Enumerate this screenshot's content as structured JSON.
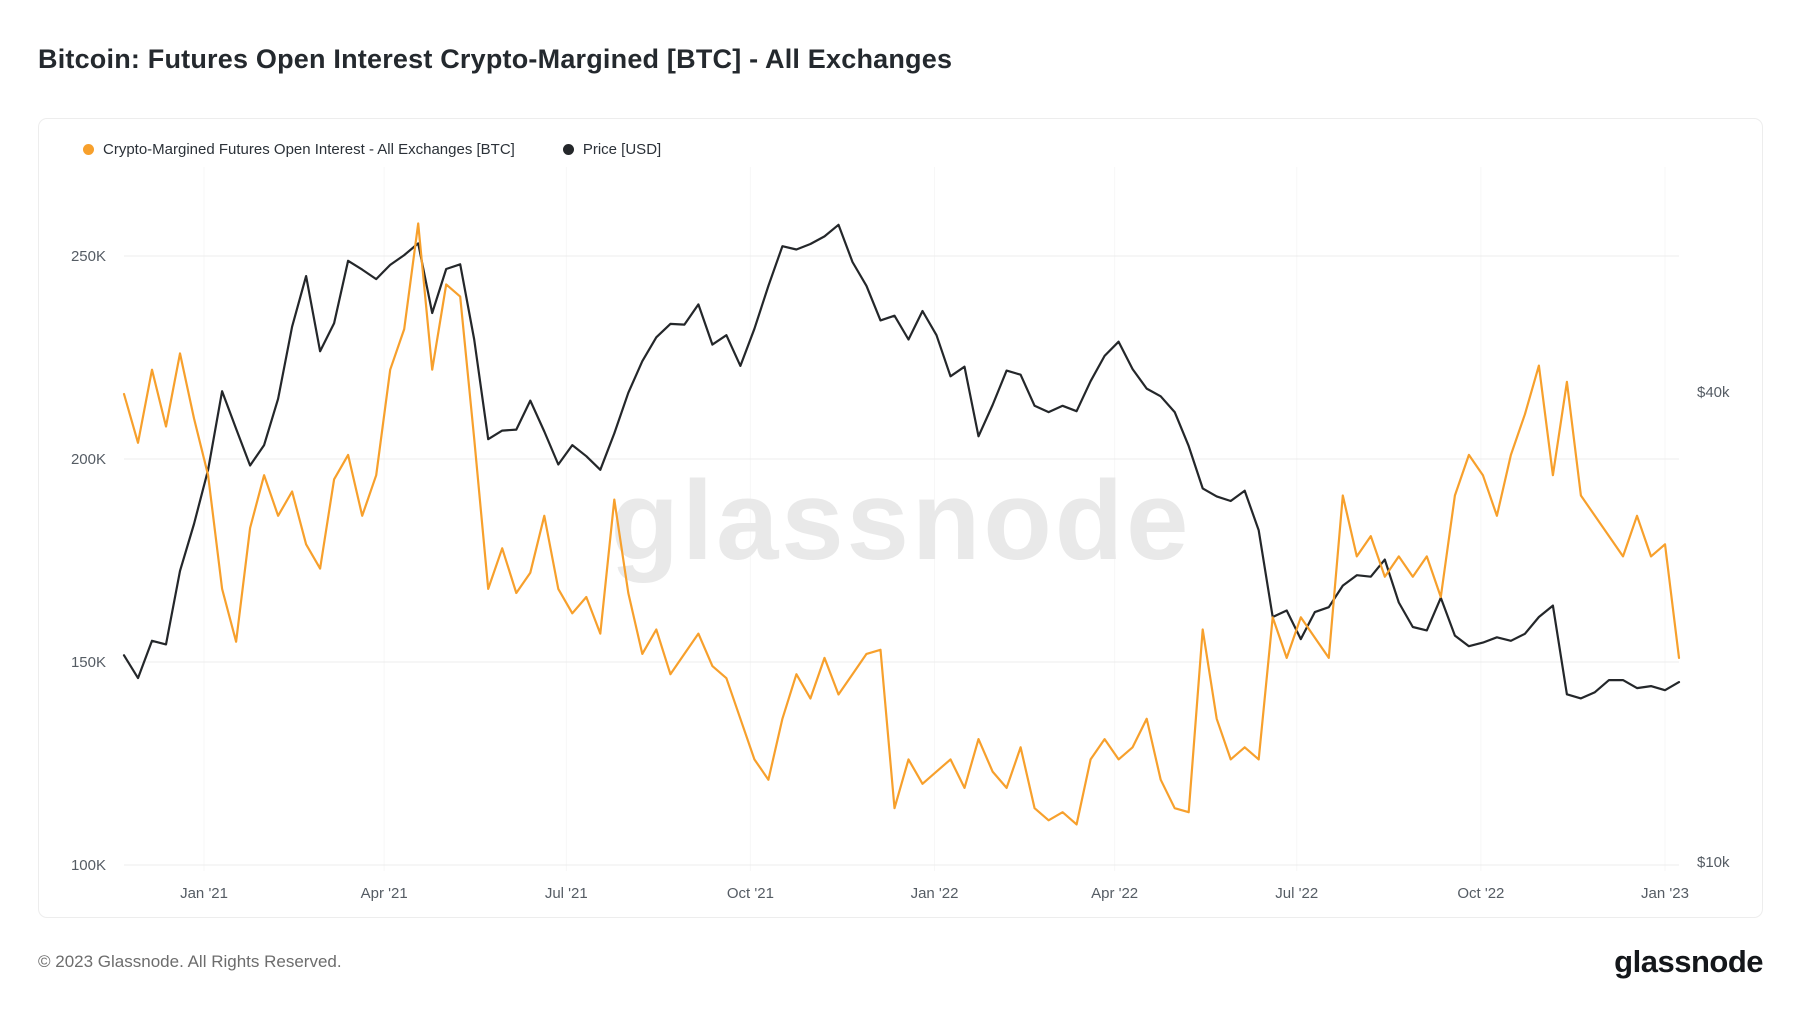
{
  "page": {
    "title": "Bitcoin: Futures Open Interest Crypto-Margined [BTC] - All Exchanges",
    "watermark": "glassnode",
    "footer_copyright": "© 2023 Glassnode. All Rights Reserved.",
    "brand": "glassnode"
  },
  "chart_data": {
    "type": "line",
    "title": "Bitcoin: Futures Open Interest Crypto-Margined [BTC] - All Exchanges",
    "grid": "horizontal",
    "legend_position": "top-left",
    "x_domain": [
      "2020-11-22",
      "2023-01-08"
    ],
    "x_ticks": [
      {
        "label": "Jan '21",
        "date": "2021-01-01"
      },
      {
        "label": "Apr '21",
        "date": "2021-04-01"
      },
      {
        "label": "Jul '21",
        "date": "2021-07-01"
      },
      {
        "label": "Oct '21",
        "date": "2021-10-01"
      },
      {
        "label": "Jan '22",
        "date": "2022-01-01"
      },
      {
        "label": "Apr '22",
        "date": "2022-04-01"
      },
      {
        "label": "Jul '22",
        "date": "2022-07-01"
      },
      {
        "label": "Oct '22",
        "date": "2022-10-01"
      },
      {
        "label": "Jan '23",
        "date": "2023-01-01"
      }
    ],
    "left_axis": {
      "unit": "BTC",
      "scale": "linear",
      "min": 100000,
      "max": 250000,
      "ticks": [
        {
          "label": "250K",
          "value": 250000
        },
        {
          "label": "200K",
          "value": 200000
        },
        {
          "label": "150K",
          "value": 150000
        },
        {
          "label": "100K",
          "value": 100000
        }
      ]
    },
    "right_axis": {
      "unit": "USD",
      "scale": "log",
      "ticks": [
        {
          "label": "$40k",
          "value": 40000
        },
        {
          "label": "$10k",
          "value": 10000
        }
      ]
    },
    "series": [
      {
        "id": "open-interest",
        "name": "Crypto-Margined Futures Open Interest - All Exchanges [BTC]",
        "axis": "left",
        "color": "#f7a02c",
        "start": "2020-11-22",
        "step_days": 7,
        "values": [
          216000,
          204000,
          222000,
          208000,
          226000,
          210000,
          196000,
          168000,
          155000,
          183000,
          196000,
          186000,
          192000,
          179000,
          173000,
          195000,
          201000,
          186000,
          196000,
          222000,
          232000,
          258000,
          222000,
          243000,
          240000,
          205000,
          168000,
          178000,
          167000,
          172000,
          186000,
          168000,
          162000,
          166000,
          157000,
          190000,
          167000,
          152000,
          158000,
          147000,
          152000,
          157000,
          149000,
          146000,
          136000,
          126000,
          121000,
          136000,
          147000,
          141000,
          151000,
          142000,
          147000,
          152000,
          153000,
          114000,
          126000,
          120000,
          123000,
          126000,
          119000,
          131000,
          123000,
          119000,
          129000,
          114000,
          111000,
          113000,
          110000,
          126000,
          131000,
          126000,
          129000,
          136000,
          121000,
          114000,
          113000,
          158000,
          136000,
          126000,
          129000,
          126000,
          161000,
          151000,
          161000,
          156000,
          151000,
          191000,
          176000,
          181000,
          171000,
          176000,
          171000,
          176000,
          166000,
          191000,
          201000,
          196000,
          186000,
          201000,
          211000,
          223000,
          196000,
          219000,
          191000,
          186000,
          181000,
          176000,
          186000,
          176000,
          179000,
          151000
        ]
      },
      {
        "id": "price",
        "name": "Price [USD]",
        "axis": "right",
        "color": "#24272a",
        "start": "2020-11-22",
        "step_days": 7,
        "values": [
          18400,
          17200,
          19200,
          19000,
          23600,
          27100,
          31800,
          40100,
          35900,
          32200,
          34200,
          39200,
          48500,
          56300,
          45100,
          49000,
          58900,
          57400,
          55800,
          58200,
          59900,
          62000,
          50500,
          57500,
          58300,
          46700,
          34800,
          35700,
          35800,
          39000,
          35600,
          32300,
          34200,
          33100,
          31800,
          35400,
          39900,
          43800,
          47000,
          48900,
          48800,
          51800,
          46000,
          47300,
          43200,
          48200,
          54700,
          61500,
          60900,
          61900,
          63300,
          65500,
          58700,
          54700,
          49400,
          50100,
          46700,
          50800,
          47300,
          41900,
          43100,
          35100,
          38500,
          42600,
          42100,
          38400,
          37700,
          38400,
          37800,
          41300,
          44500,
          46400,
          42800,
          40400,
          39500,
          37700,
          34100,
          30100,
          29400,
          29000,
          29900,
          26600,
          20600,
          21000,
          19300,
          20900,
          21200,
          22600,
          23300,
          23200,
          24400,
          21500,
          20000,
          19800,
          21800,
          19500,
          18900,
          19100,
          19400,
          19200,
          19600,
          20600,
          21300,
          16400,
          16200,
          16500,
          17100,
          17100,
          16700,
          16800,
          16600,
          17000
        ]
      }
    ]
  }
}
